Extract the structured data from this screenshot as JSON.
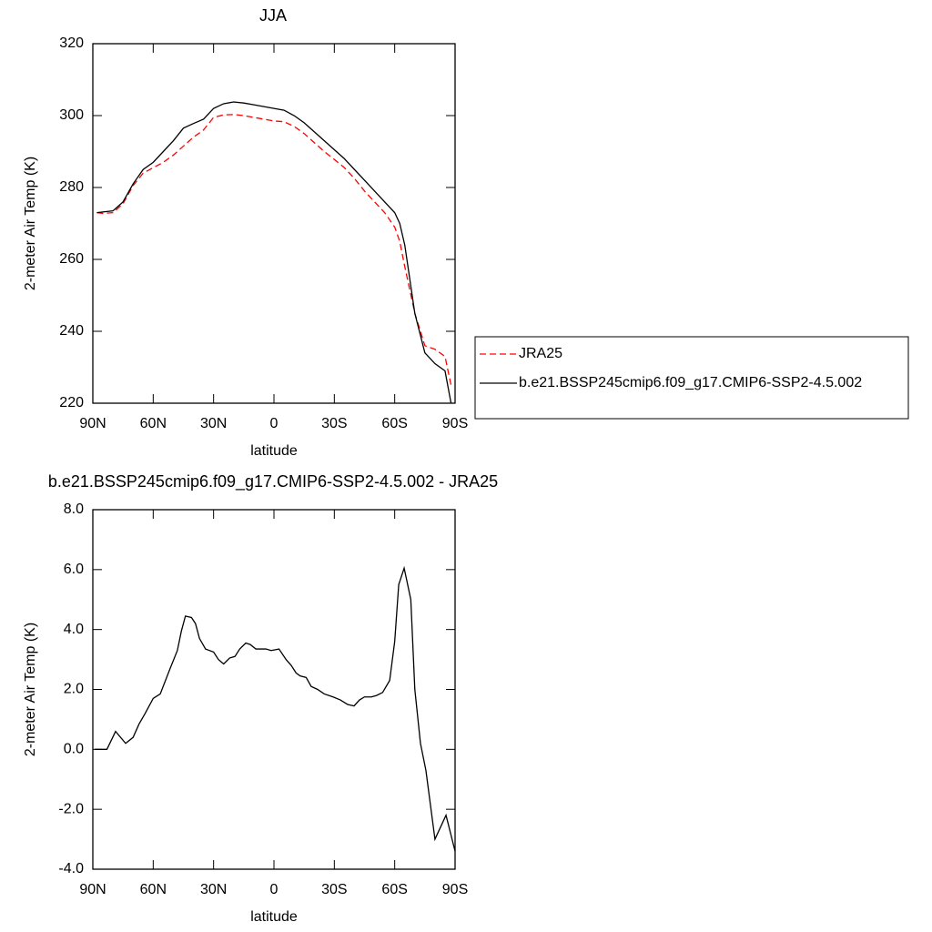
{
  "chart_data": [
    {
      "type": "line",
      "title": "JJA",
      "xlabel": "latitude",
      "ylabel": "2-meter Air Temp (K)",
      "xlim": [
        90,
        -90
      ],
      "ylim": [
        220,
        320
      ],
      "xticks": [
        {
          "value": 90,
          "label": "90N"
        },
        {
          "value": 60,
          "label": "60N"
        },
        {
          "value": 30,
          "label": "30N"
        },
        0,
        {
          "value": -30,
          "label": "30S"
        },
        {
          "value": -60,
          "label": "60S"
        },
        {
          "value": -90,
          "label": "90S"
        }
      ],
      "yticks": [
        220,
        240,
        260,
        280,
        300,
        320
      ],
      "legend": "right",
      "x": [
        88,
        85,
        80,
        75,
        70,
        65,
        60,
        55,
        50,
        45,
        40,
        35,
        30,
        25,
        20,
        15,
        10,
        5,
        0,
        -5,
        -10,
        -15,
        -20,
        -25,
        -30,
        -35,
        -40,
        -45,
        -50,
        -55,
        -60,
        -62.5,
        -65,
        -70,
        -75,
        -80,
        -85,
        -88
      ],
      "series": [
        {
          "name": "JRA25",
          "color": "#ff0000",
          "linestyle": "dashed",
          "values": [
            273,
            272.8,
            273,
            275.5,
            280.5,
            284,
            285.5,
            287,
            289,
            291.5,
            294,
            296,
            299.5,
            300.2,
            300.3,
            300,
            299.5,
            299,
            298.5,
            298.3,
            297,
            295,
            292.5,
            290,
            287.8,
            285.5,
            282.5,
            279,
            276,
            273,
            269,
            265,
            258,
            245,
            236,
            235,
            233,
            225
          ]
        },
        {
          "name": "b.e21.BSSP245cmip6.f09_g17.CMIP6-SSP2-4.5.002",
          "color": "#000000",
          "linestyle": "solid",
          "values": [
            273,
            273.2,
            273.5,
            276,
            281,
            285,
            287,
            290,
            293,
            296.5,
            297.8,
            299,
            302,
            303.3,
            303.8,
            303.5,
            303,
            302.5,
            302,
            301.5,
            300,
            298,
            295.5,
            293,
            290.5,
            288,
            285,
            282,
            279,
            276,
            273,
            270,
            264,
            245,
            234,
            231,
            229,
            220
          ]
        }
      ]
    },
    {
      "type": "line",
      "title": "b.e21.BSSP245cmip6.f09_g17.CMIP6-SSP2-4.5.002 - JRA25",
      "xlabel": "latitude",
      "ylabel": "2-meter Air Temp (K)",
      "xlim": [
        90,
        -90
      ],
      "ylim": [
        -4,
        8
      ],
      "xticks": [
        {
          "value": 90,
          "label": "90N"
        },
        {
          "value": 60,
          "label": "60N"
        },
        {
          "value": 30,
          "label": "30N"
        },
        0,
        {
          "value": -30,
          "label": "30S"
        },
        {
          "value": -60,
          "label": "60S"
        },
        {
          "value": -90,
          "label": "90S"
        }
      ],
      "yticks": [
        {
          "value": -4,
          "label": "-4.0"
        },
        {
          "value": -2,
          "label": "-2.0"
        },
        {
          "value": 0,
          "label": "0.0"
        },
        {
          "value": 2,
          "label": "2.0"
        },
        {
          "value": 4,
          "label": "4.0"
        },
        {
          "value": 6,
          "label": "6.0"
        },
        {
          "value": 8,
          "label": "8.0"
        }
      ],
      "x": [
        89,
        83,
        78.7,
        73.7,
        70,
        67,
        64,
        60,
        56.5,
        51.6,
        48,
        46,
        44,
        41,
        39,
        37,
        34,
        30,
        27.6,
        25,
        22,
        19.4,
        17,
        14,
        11.8,
        9,
        4,
        1.4,
        -2.5,
        -6,
        -8.6,
        -11,
        -13,
        -16,
        -18.5,
        -21.7,
        -25,
        -29.4,
        -33,
        -36.6,
        -39.8,
        -42.5,
        -45,
        -48.4,
        -51,
        -54,
        -57.5,
        -60,
        -62,
        -64.7,
        -68,
        -70,
        -72.8,
        -75.5,
        -80,
        -85.5,
        -90
      ],
      "color": "#000000",
      "values": [
        0,
        0,
        0.6,
        0.2,
        0.4,
        0.85,
        1.2,
        1.7,
        1.85,
        2.7,
        3.3,
        3.95,
        4.45,
        4.4,
        4.2,
        3.7,
        3.35,
        3.25,
        3.0,
        2.85,
        3.05,
        3.1,
        3.35,
        3.55,
        3.5,
        3.35,
        3.35,
        3.3,
        3.35,
        3.0,
        2.8,
        2.55,
        2.45,
        2.4,
        2.1,
        2.0,
        1.85,
        1.75,
        1.65,
        1.5,
        1.45,
        1.65,
        1.75,
        1.75,
        1.8,
        1.9,
        2.3,
        3.6,
        5.5,
        6.05,
        5.0,
        2.0,
        0.2,
        -0.7,
        -3.0,
        -2.2,
        -3.4
      ]
    }
  ]
}
